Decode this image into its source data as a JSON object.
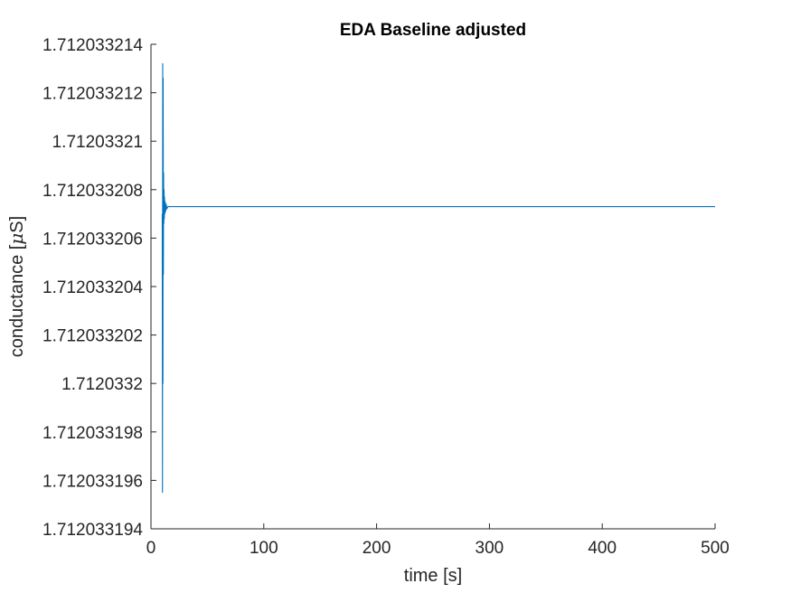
{
  "chart_data": {
    "type": "line",
    "title": "EDA Baseline adjusted",
    "xlabel": "time [s]",
    "ylabel_prefix": "conductance [",
    "ylabel_mu": "μ",
    "ylabel_suffix": "S]",
    "xlim": [
      0,
      500
    ],
    "ylim": [
      1.712033194,
      1.712033214
    ],
    "x_ticks": [
      0,
      100,
      200,
      300,
      400,
      500
    ],
    "x_tick_labels": [
      "0",
      "100",
      "200",
      "300",
      "400",
      "500"
    ],
    "y_ticks": [
      1.712033194,
      1.712033196,
      1.712033198,
      1.7120332,
      1.712033202,
      1.712033204,
      1.712033206,
      1.712033208,
      1.71203321,
      1.712033212,
      1.712033214
    ],
    "y_tick_labels": [
      "1.712033194",
      "1.712033196",
      "1.712033198",
      "1.7120332",
      "1.712033202",
      "1.712033204",
      "1.712033206",
      "1.712033208",
      "1.71203321",
      "1.712033212",
      "1.712033214"
    ],
    "grid": false,
    "box": false,
    "series": [
      {
        "color": "#0072BD",
        "x": [
          10,
          10.2,
          10.4,
          10.6,
          10.8,
          11,
          11.2,
          11.4,
          11.6,
          11.8,
          12,
          12.3,
          12.6,
          13,
          13.5,
          14,
          15,
          16,
          20,
          50,
          100,
          200,
          300,
          400,
          500
        ],
        "y": [
          1.712033207,
          1.7120331955,
          1.7120332132,
          1.7120332,
          1.7120332126,
          1.7120332045,
          1.7120332087,
          1.7120332066,
          1.712033208,
          1.7120332068,
          1.7120332077,
          1.712033207,
          1.7120332075,
          1.7120332071,
          1.7120332074,
          1.7120332072,
          1.7120332073,
          1.7120332073,
          1.7120332073,
          1.7120332073,
          1.7120332073,
          1.7120332073,
          1.7120332073,
          1.7120332073,
          1.7120332073
        ]
      }
    ]
  }
}
